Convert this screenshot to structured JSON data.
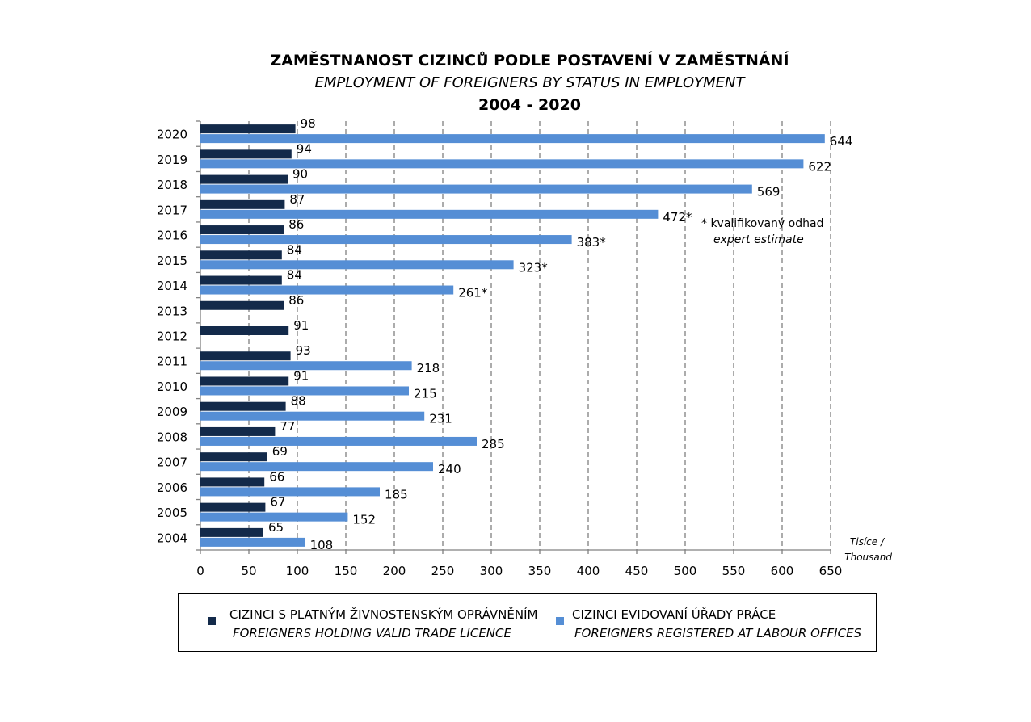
{
  "chart_data": {
    "type": "bar",
    "orientation": "horizontal",
    "title": "ZAMĚSTNANOST CIZINCŮ PODLE POSTAVENÍ V ZAMĚSTNÁNÍ",
    "subtitle": "EMPLOYMENT OF FOREIGNERS BY STATUS IN EMPLOYMENT",
    "period": "2004 - 2020",
    "categories": [
      "2020",
      "2019",
      "2018",
      "2017",
      "2016",
      "2015",
      "2014",
      "2013",
      "2012",
      "2011",
      "2010",
      "2009",
      "2008",
      "2007",
      "2006",
      "2005",
      "2004"
    ],
    "series": [
      {
        "name": "CIZINCI S PLATNÝM ŽIVNOSTENSKÝM OPRÁVNĚNÍM",
        "name_en": "FOREIGNERS HOLDING VALID TRADE LICENCE",
        "color": "#132a4a",
        "values": [
          98,
          94,
          90,
          87,
          86,
          84,
          84,
          86,
          91,
          93,
          91,
          88,
          77,
          69,
          66,
          67,
          65
        ],
        "labels": [
          "98",
          "94",
          "90",
          "87",
          "86",
          "84",
          "84",
          "86",
          "91",
          "93",
          "91",
          "88",
          "77",
          "69",
          "66",
          "67",
          "65"
        ]
      },
      {
        "name": "CIZINCI EVIDOVANÍ ÚŘADY PRÁCE",
        "name_en": "FOREIGNERS REGISTERED AT LABOUR OFFICES",
        "color": "#558ed5",
        "values": [
          644,
          622,
          569,
          472,
          383,
          323,
          261,
          null,
          null,
          218,
          215,
          231,
          285,
          240,
          185,
          152,
          108
        ],
        "labels": [
          "644",
          "622",
          "569",
          "472*",
          "383*",
          "323*",
          "261*",
          "",
          "",
          "218",
          "215",
          "231",
          "285",
          "240",
          "185",
          "152",
          "108"
        ]
      }
    ],
    "xlim": [
      0,
      650
    ],
    "xticks": [
      0,
      50,
      100,
      150,
      200,
      250,
      300,
      350,
      400,
      450,
      500,
      550,
      600,
      650
    ],
    "grid": "vertical dashed",
    "unit_line1": "Tisíce /",
    "unit_line2": "Thousand",
    "note_line1": "* kvalifikovaný odhad",
    "note_line2": "expert estimate",
    "legend_position": "bottom"
  }
}
